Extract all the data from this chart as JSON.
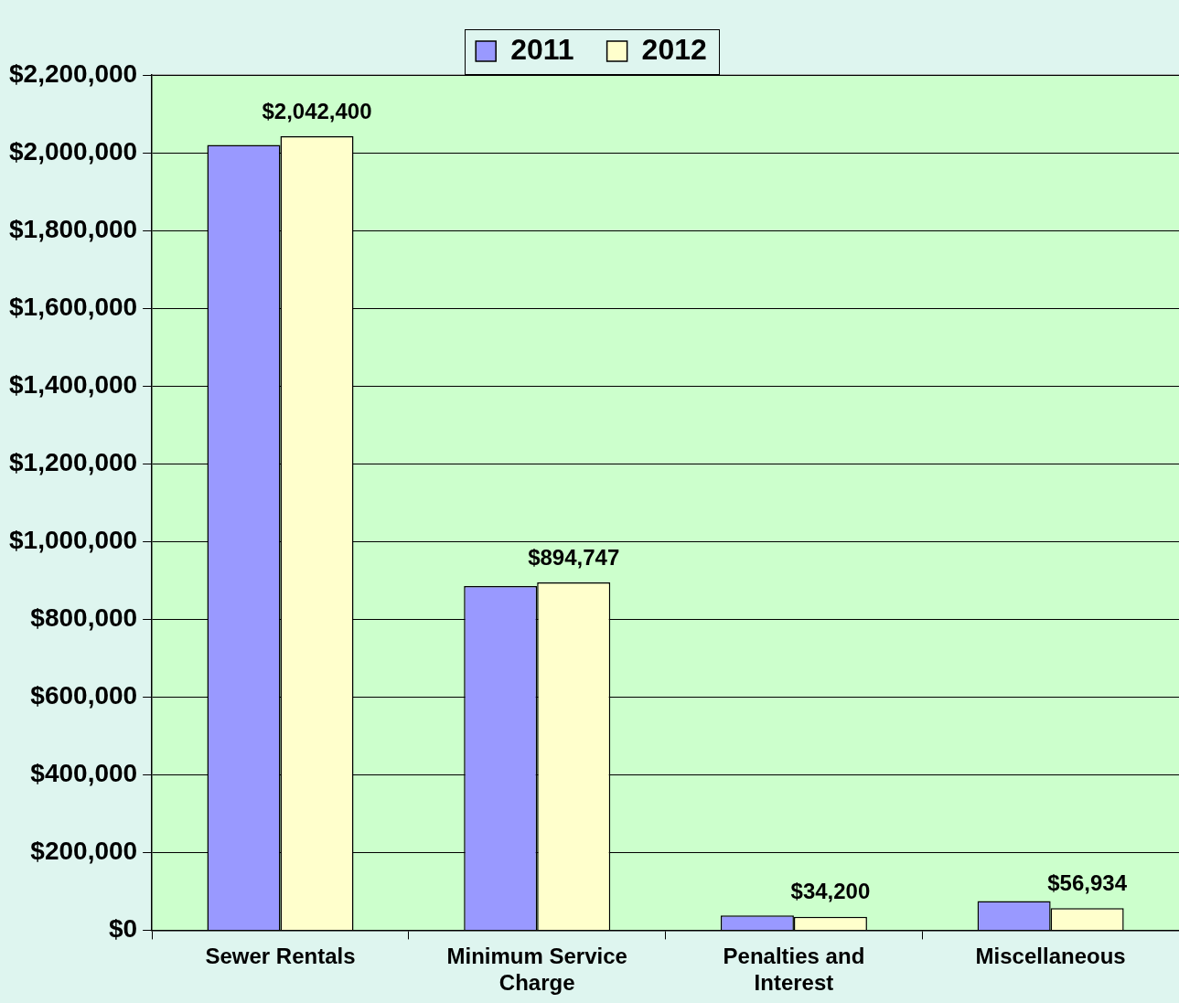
{
  "chart_data": {
    "type": "bar",
    "categories": [
      "Sewer Rentals",
      "Minimum Service Charge",
      "Penalties and Interest",
      "Miscellaneous"
    ],
    "series": [
      {
        "name": "2011",
        "color": "#9999ff",
        "values": [
          2020000,
          885000,
          38000,
          75000
        ]
      },
      {
        "name": "2012",
        "color": "#ffffcc",
        "values": [
          2042400,
          894747,
          34200,
          56934
        ],
        "value_labels": [
          "$2,042,400",
          "$894,747",
          "$34,200",
          "$56,934"
        ]
      }
    ],
    "ylim": [
      0,
      2200000
    ],
    "yticks": [
      {
        "value": 0,
        "label": "$0"
      },
      {
        "value": 200000,
        "label": "$200,000"
      },
      {
        "value": 400000,
        "label": "$400,000"
      },
      {
        "value": 600000,
        "label": "$600,000"
      },
      {
        "value": 800000,
        "label": "$800,000"
      },
      {
        "value": 1000000,
        "label": "$1,000,000"
      },
      {
        "value": 1200000,
        "label": "$1,200,000"
      },
      {
        "value": 1400000,
        "label": "$1,400,000"
      },
      {
        "value": 1600000,
        "label": "$1,600,000"
      },
      {
        "value": 1800000,
        "label": "$1,800,000"
      },
      {
        "value": 2000000,
        "label": "$2,000,000"
      },
      {
        "value": 2200000,
        "label": "$2,200,000"
      }
    ],
    "grid": "y",
    "legend": "top"
  }
}
